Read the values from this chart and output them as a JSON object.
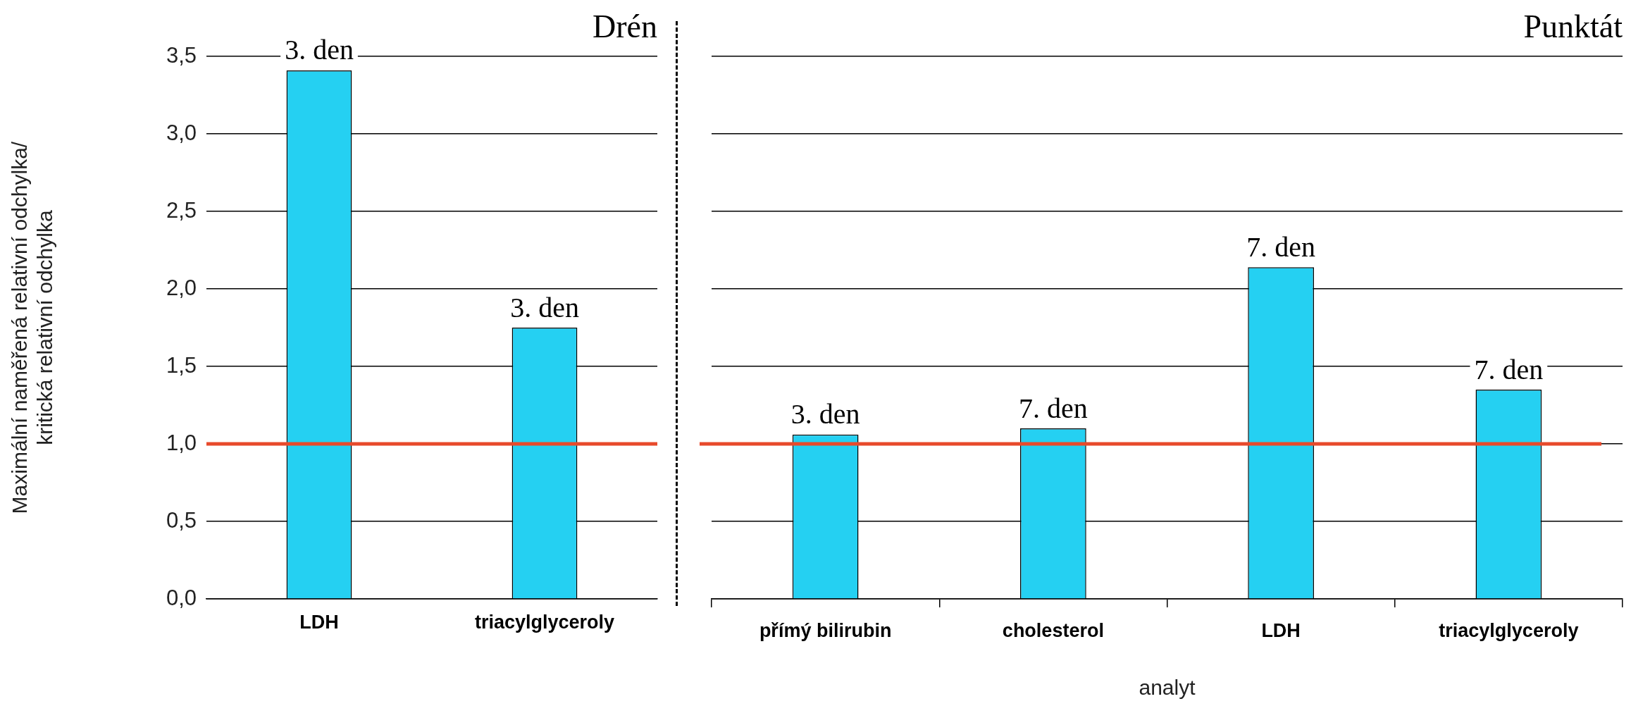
{
  "chart_data": [
    {
      "type": "bar",
      "title": "Drén",
      "ylabel": "Maximální naměřená relativní odchylka/\nkritická relativní odchylka",
      "categories": [
        "LDH",
        "triacylglyceroly"
      ],
      "values": [
        3.41,
        1.75
      ],
      "color": "#25d0f2",
      "ylim": [
        0,
        3.5
      ],
      "yticks": [
        {
          "value": 0,
          "label": "0,0"
        },
        {
          "value": 0.5,
          "label": "0,5"
        },
        {
          "value": 1,
          "label": "1,0"
        },
        {
          "value": 1.5,
          "label": "1,5"
        },
        {
          "value": 2,
          "label": "2,0"
        },
        {
          "value": 2.5,
          "label": "2,5"
        },
        {
          "value": 3,
          "label": "3,0"
        },
        {
          "value": 3.5,
          "label": "3,5"
        }
      ],
      "grid": "y",
      "legend": false,
      "ref_lines": [
        {
          "axis": "y",
          "value": 1,
          "color": "#e84a2b"
        }
      ],
      "annotations": [
        {
          "text": "3. den",
          "x": "LDH",
          "y": 3.41
        },
        {
          "text": "3. den",
          "x": "triacylglyceroly",
          "y": 1.75
        }
      ]
    },
    {
      "type": "bar",
      "title": "Punktát",
      "xlabel": "analyt",
      "categories": [
        "přímý bilirubin",
        "cholesterol",
        "LDH",
        "triacylglyceroly"
      ],
      "values": [
        1.06,
        1.1,
        2.14,
        1.35
      ],
      "color": "#25d0f2",
      "ylim": [
        0,
        3.5
      ],
      "yticks": [
        0,
        0.5,
        1,
        1.5,
        2,
        2.5,
        3,
        3.5
      ],
      "grid": "y",
      "legend": false,
      "tick_labels": "x",
      "ref_lines": [
        {
          "axis": "y",
          "value": 1,
          "color": "#e84a2b"
        }
      ],
      "annotations": [
        {
          "text": "3. den",
          "x": "přímý bilirubin",
          "y": 1.06
        },
        {
          "text": "7. den",
          "x": "cholesterol",
          "y": 1.1
        },
        {
          "text": "7. den",
          "x": "LDH",
          "y": 2.14
        },
        {
          "text": "7. den",
          "x": "triacylglyceroly",
          "y": 1.35
        }
      ]
    }
  ]
}
